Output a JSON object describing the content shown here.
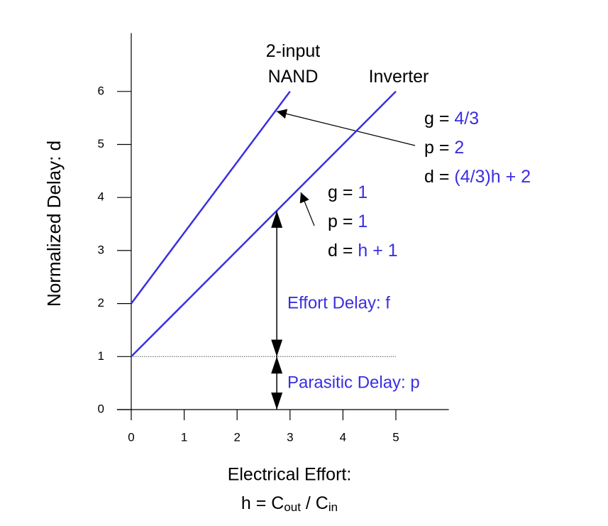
{
  "chart_data": {
    "type": "line",
    "ylabel": "Normalized Delay: d",
    "xlabel": "Electrical Effort:",
    "xlabel_formula": [
      "h = C",
      "out",
      " / C",
      "in"
    ],
    "xlim": [
      -0.27,
      6
    ],
    "ylim": [
      0,
      7.1
    ],
    "xticks": [
      0,
      1,
      2,
      3,
      4,
      5
    ],
    "yticks": [
      0,
      1,
      2,
      3,
      4,
      5,
      6
    ],
    "series": [
      {
        "name": "2-input NAND",
        "color": "#3a2fe0",
        "x": [
          0,
          3
        ],
        "values": [
          2,
          6
        ]
      },
      {
        "name": "Inverter",
        "color": "#3a2fe0",
        "x": [
          0,
          5
        ],
        "values": [
          1,
          6
        ]
      }
    ],
    "reference_line": {
      "y": 1,
      "x": [
        0,
        5
      ]
    },
    "arrows": [
      {
        "label": "Effort Delay: f",
        "x": 2.75,
        "from": 1,
        "to": 3.75
      },
      {
        "label": "Parasitic Delay: p",
        "x": 2.75,
        "from": 0,
        "to": 1
      }
    ],
    "equations": [
      [
        [
          "g = ",
          "4/3"
        ],
        [
          "p = ",
          "2"
        ],
        [
          "d = ",
          "(4/3)h + 2"
        ]
      ],
      [
        [
          "g = ",
          "1"
        ],
        [
          "p = ",
          "1"
        ],
        [
          "d = ",
          "h + 1"
        ]
      ]
    ],
    "annotation_color": "#3a2fe0"
  }
}
